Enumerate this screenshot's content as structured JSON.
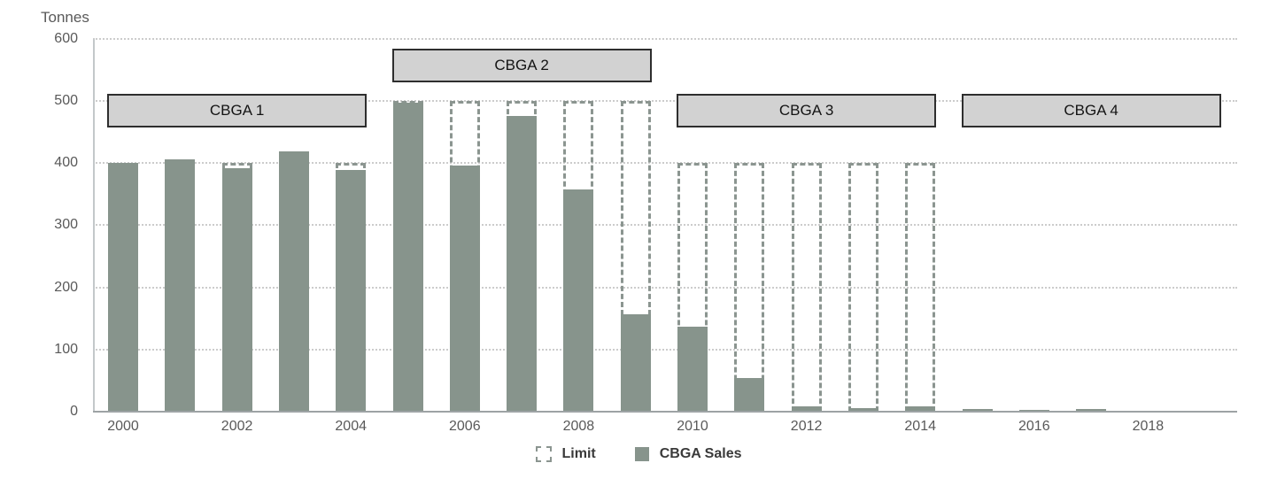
{
  "chart_data": {
    "type": "bar",
    "title": "",
    "ylabel": "Tonnes",
    "xlabel": "",
    "ylim": [
      0,
      600
    ],
    "yticks": [
      0,
      100,
      200,
      300,
      400,
      500,
      600
    ],
    "xticks": [
      2000,
      2002,
      2004,
      2006,
      2008,
      2010,
      2012,
      2014,
      2016,
      2018
    ],
    "x": [
      2000,
      2001,
      2002,
      2003,
      2004,
      2005,
      2006,
      2007,
      2008,
      2009,
      2010,
      2011,
      2012,
      2013,
      2014,
      2015,
      2016,
      2017,
      2018
    ],
    "grid": "horizontal-dotted",
    "legend_position": "bottom-center",
    "series": [
      {
        "name": "Limit",
        "style": "dashed-outline",
        "values": [
          400,
          400,
          400,
          400,
          400,
          500,
          500,
          500,
          500,
          500,
          400,
          400,
          400,
          400,
          400,
          null,
          null,
          null,
          null
        ]
      },
      {
        "name": "CBGA Sales",
        "style": "solid",
        "values": [
          400,
          405,
          391,
          418,
          388,
          497,
          396,
          475,
          357,
          157,
          136,
          54,
          8,
          5,
          8,
          4,
          3,
          4,
          0
        ]
      }
    ],
    "agreement_boxes": [
      {
        "label": "CBGA 1",
        "start_year": 2000,
        "end_year": 2004,
        "row": "low"
      },
      {
        "label": "CBGA 2",
        "start_year": 2005,
        "end_year": 2009,
        "row": "high"
      },
      {
        "label": "CBGA 3",
        "start_year": 2010,
        "end_year": 2014,
        "row": "low"
      },
      {
        "label": "CBGA 4",
        "start_year": 2015,
        "end_year": 2019,
        "row": "low"
      }
    ]
  },
  "legend": [
    {
      "label": "Limit",
      "swatch": "dashed"
    },
    {
      "label": "CBGA Sales",
      "swatch": "solid"
    }
  ],
  "colors": {
    "bar_fill": "#87948c",
    "limit_dash": "#8b9590",
    "box_fill": "#d2d2d2",
    "box_border": "#2e2e2e",
    "gridline": "#cccccc",
    "axis_line": "#9da3a5",
    "tick_text": "#595959",
    "legend_text": "#3a3a3a"
  }
}
